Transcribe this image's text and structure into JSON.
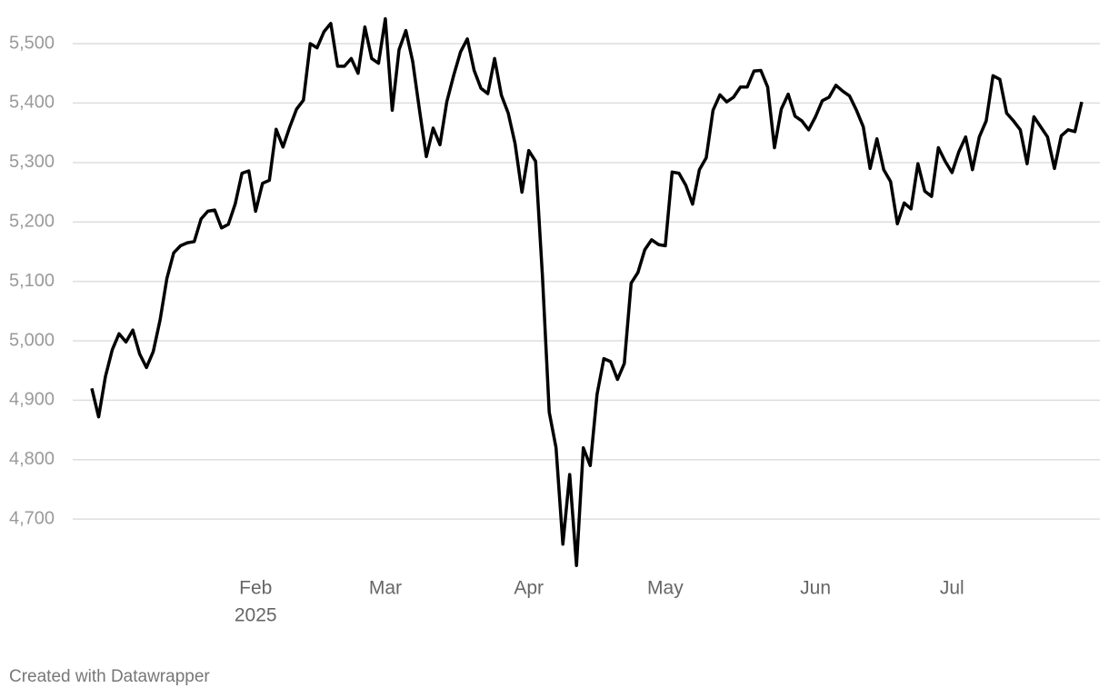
{
  "chart_data": {
    "type": "line",
    "categories": [
      null,
      null,
      null,
      null,
      null,
      null,
      null,
      null,
      null,
      null,
      null,
      null,
      null,
      null,
      null,
      null,
      null,
      null,
      null,
      null,
      null,
      null,
      null,
      null,
      "Feb",
      null,
      null,
      null,
      null,
      null,
      null,
      null,
      null,
      null,
      null,
      null,
      null,
      null,
      null,
      null,
      null,
      null,
      null,
      "Mar",
      null,
      null,
      null,
      null,
      null,
      null,
      null,
      null,
      null,
      null,
      null,
      null,
      null,
      null,
      null,
      null,
      null,
      null,
      null,
      null,
      "Apr",
      null,
      null,
      null,
      null,
      null,
      null,
      null,
      null,
      null,
      null,
      null,
      null,
      null,
      null,
      null,
      null,
      null,
      null,
      null,
      "May",
      null,
      null,
      null,
      null,
      null,
      null,
      null,
      null,
      null,
      null,
      null,
      null,
      null,
      null,
      null,
      null,
      null,
      null,
      null,
      null,
      null,
      "Jun",
      null,
      null,
      null,
      null,
      null,
      null,
      null,
      null,
      null,
      null,
      null,
      null,
      null,
      null,
      null,
      null,
      null,
      null,
      null,
      "Jul",
      null,
      null,
      null,
      null,
      null,
      null,
      null,
      null,
      null,
      null,
      null,
      null,
      null,
      null,
      null,
      null,
      null,
      null,
      null
    ],
    "x_year_label": "2025",
    "values": [
      4920,
      4872,
      4940,
      4985,
      5012,
      4998,
      5018,
      4978,
      4955,
      4982,
      5035,
      5105,
      5148,
      5160,
      5165,
      5167,
      5205,
      5218,
      5220,
      5190,
      5196,
      5230,
      5282,
      5286,
      5218,
      5265,
      5270,
      5356,
      5326,
      5360,
      5390,
      5405,
      5500,
      5493,
      5520,
      5534,
      5462,
      5462,
      5475,
      5450,
      5528,
      5475,
      5467,
      5542,
      5388,
      5490,
      5522,
      5470,
      5388,
      5310,
      5358,
      5330,
      5402,
      5446,
      5486,
      5508,
      5455,
      5425,
      5416,
      5475,
      5413,
      5383,
      5332,
      5250,
      5320,
      5302,
      5110,
      4880,
      4820,
      4658,
      4775,
      4622,
      4820,
      4790,
      4910,
      4970,
      4965,
      4935,
      4962,
      5097,
      5115,
      5153,
      5170,
      5162,
      5160,
      5284,
      5282,
      5262,
      5230,
      5288,
      5308,
      5388,
      5414,
      5402,
      5410,
      5427,
      5427,
      5454,
      5455,
      5427,
      5325,
      5390,
      5415,
      5378,
      5370,
      5355,
      5377,
      5404,
      5410,
      5430,
      5420,
      5412,
      5388,
      5360,
      5290,
      5340,
      5288,
      5268,
      5197,
      5232,
      5222,
      5298,
      5252,
      5243,
      5325,
      5302,
      5283,
      5318,
      5343,
      5288,
      5343,
      5370,
      5446,
      5440,
      5383,
      5370,
      5355,
      5298,
      5377,
      5360,
      5343,
      5290,
      5345,
      5355,
      5352,
      5402
    ],
    "color": "#000000",
    "ylim": [
      4620,
      5545
    ],
    "yticks": [
      {
        "value": 4700,
        "label": "4,700"
      },
      {
        "value": 4800,
        "label": "4,800"
      },
      {
        "value": 4900,
        "label": "4,900"
      },
      {
        "value": 5000,
        "label": "5,000"
      },
      {
        "value": 5100,
        "label": "5,100"
      },
      {
        "value": 5200,
        "label": "5,200"
      },
      {
        "value": 5300,
        "label": "5,300"
      },
      {
        "value": 5400,
        "label": "5,400"
      },
      {
        "value": 5500,
        "label": "5,500"
      }
    ],
    "grid": true,
    "credit": "Created with Datawrapper"
  }
}
